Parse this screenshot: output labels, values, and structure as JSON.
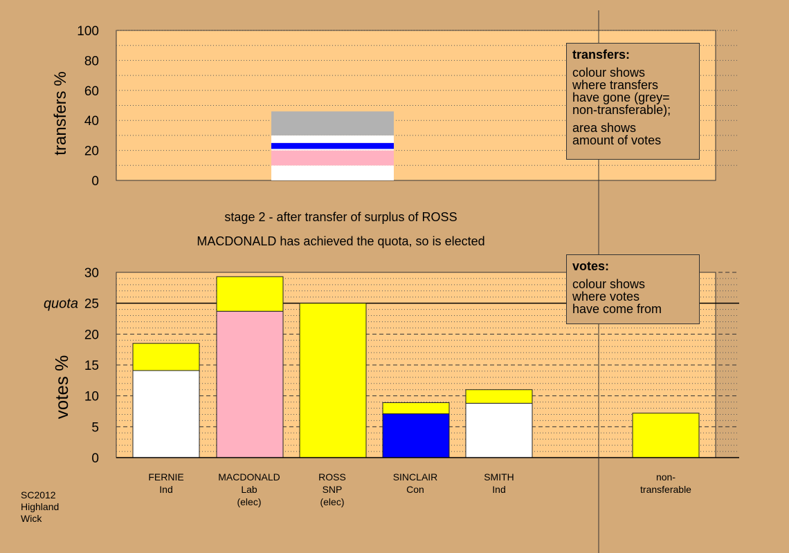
{
  "chart_data": [
    {
      "type": "bar",
      "stacked": true,
      "ylabel": "transfers %",
      "ylim": [
        0,
        100
      ],
      "yticks": [
        0,
        20,
        40,
        60,
        80,
        100
      ],
      "grid": "dotted-horizontal",
      "bars": [
        {
          "category": "ROSS",
          "segments": [
            {
              "color": "#ffffff",
              "value": 10
            },
            {
              "color": "#ffb1c1",
              "value": 10
            },
            {
              "color": "#ffffff",
              "value": 1
            },
            {
              "color": "#0000ff",
              "value": 4
            },
            {
              "color": "#ffffff",
              "value": 5
            },
            {
              "color": "#b2b2b2",
              "value": 16
            }
          ]
        }
      ],
      "legend": {
        "title": "transfers:",
        "lines": [
          "colour shows",
          "where transfers",
          "have gone (grey=",
          "non-transferable);",
          "area shows",
          "amount of votes"
        ]
      }
    },
    {
      "type": "bar",
      "stacked": true,
      "ylabel": "votes %",
      "ylim": [
        0,
        30
      ],
      "yticks": [
        0,
        5,
        10,
        15,
        20,
        25,
        30
      ],
      "quota": 25,
      "quota_label": "quota",
      "grid": "dotted-horizontal",
      "categories": [
        {
          "name": "FERNIE",
          "party": "Ind",
          "status": ""
        },
        {
          "name": "MACDONALD",
          "party": "Lab",
          "status": "(elec)"
        },
        {
          "name": "ROSS",
          "party": "SNP",
          "status": "(elec)"
        },
        {
          "name": "SINCLAIR",
          "party": "Con",
          "status": ""
        },
        {
          "name": "SMITH",
          "party": "Ind",
          "status": ""
        },
        {
          "name": "non-",
          "party": "transferable",
          "status": ""
        }
      ],
      "bars": [
        {
          "category": "FERNIE",
          "segments": [
            {
              "color": "#ffffff",
              "value": 14.1
            },
            {
              "color": "#ffff00",
              "value": 4.4
            }
          ]
        },
        {
          "category": "MACDONALD",
          "segments": [
            {
              "color": "#ffb1c1",
              "value": 23.7
            },
            {
              "color": "#ffff00",
              "value": 5.6
            }
          ]
        },
        {
          "category": "ROSS",
          "segments": [
            {
              "color": "#ffff00",
              "value": 25.0
            }
          ]
        },
        {
          "category": "SINCLAIR",
          "segments": [
            {
              "color": "#0000ff",
              "value": 7.1
            },
            {
              "color": "#ffff00",
              "value": 1.8
            }
          ]
        },
        {
          "category": "SMITH",
          "segments": [
            {
              "color": "#ffffff",
              "value": 8.8
            },
            {
              "color": "#ffff00",
              "value": 2.2
            }
          ]
        },
        {
          "category": "non-transferable",
          "segments": [
            {
              "color": "#ffff00",
              "value": 7.2
            }
          ]
        }
      ],
      "legend": {
        "title": "votes:",
        "lines": [
          "colour shows",
          "where votes",
          "have come from"
        ]
      }
    }
  ],
  "stage": {
    "title": "stage 2 - after transfer of surplus of ROSS",
    "status": "MACDONALD has achieved the quota, so is elected"
  },
  "footnote": [
    "SC2012",
    "Highland",
    "Wick"
  ],
  "colors": {
    "background": "#d4aa78",
    "plot_area": "#ffcc88"
  }
}
